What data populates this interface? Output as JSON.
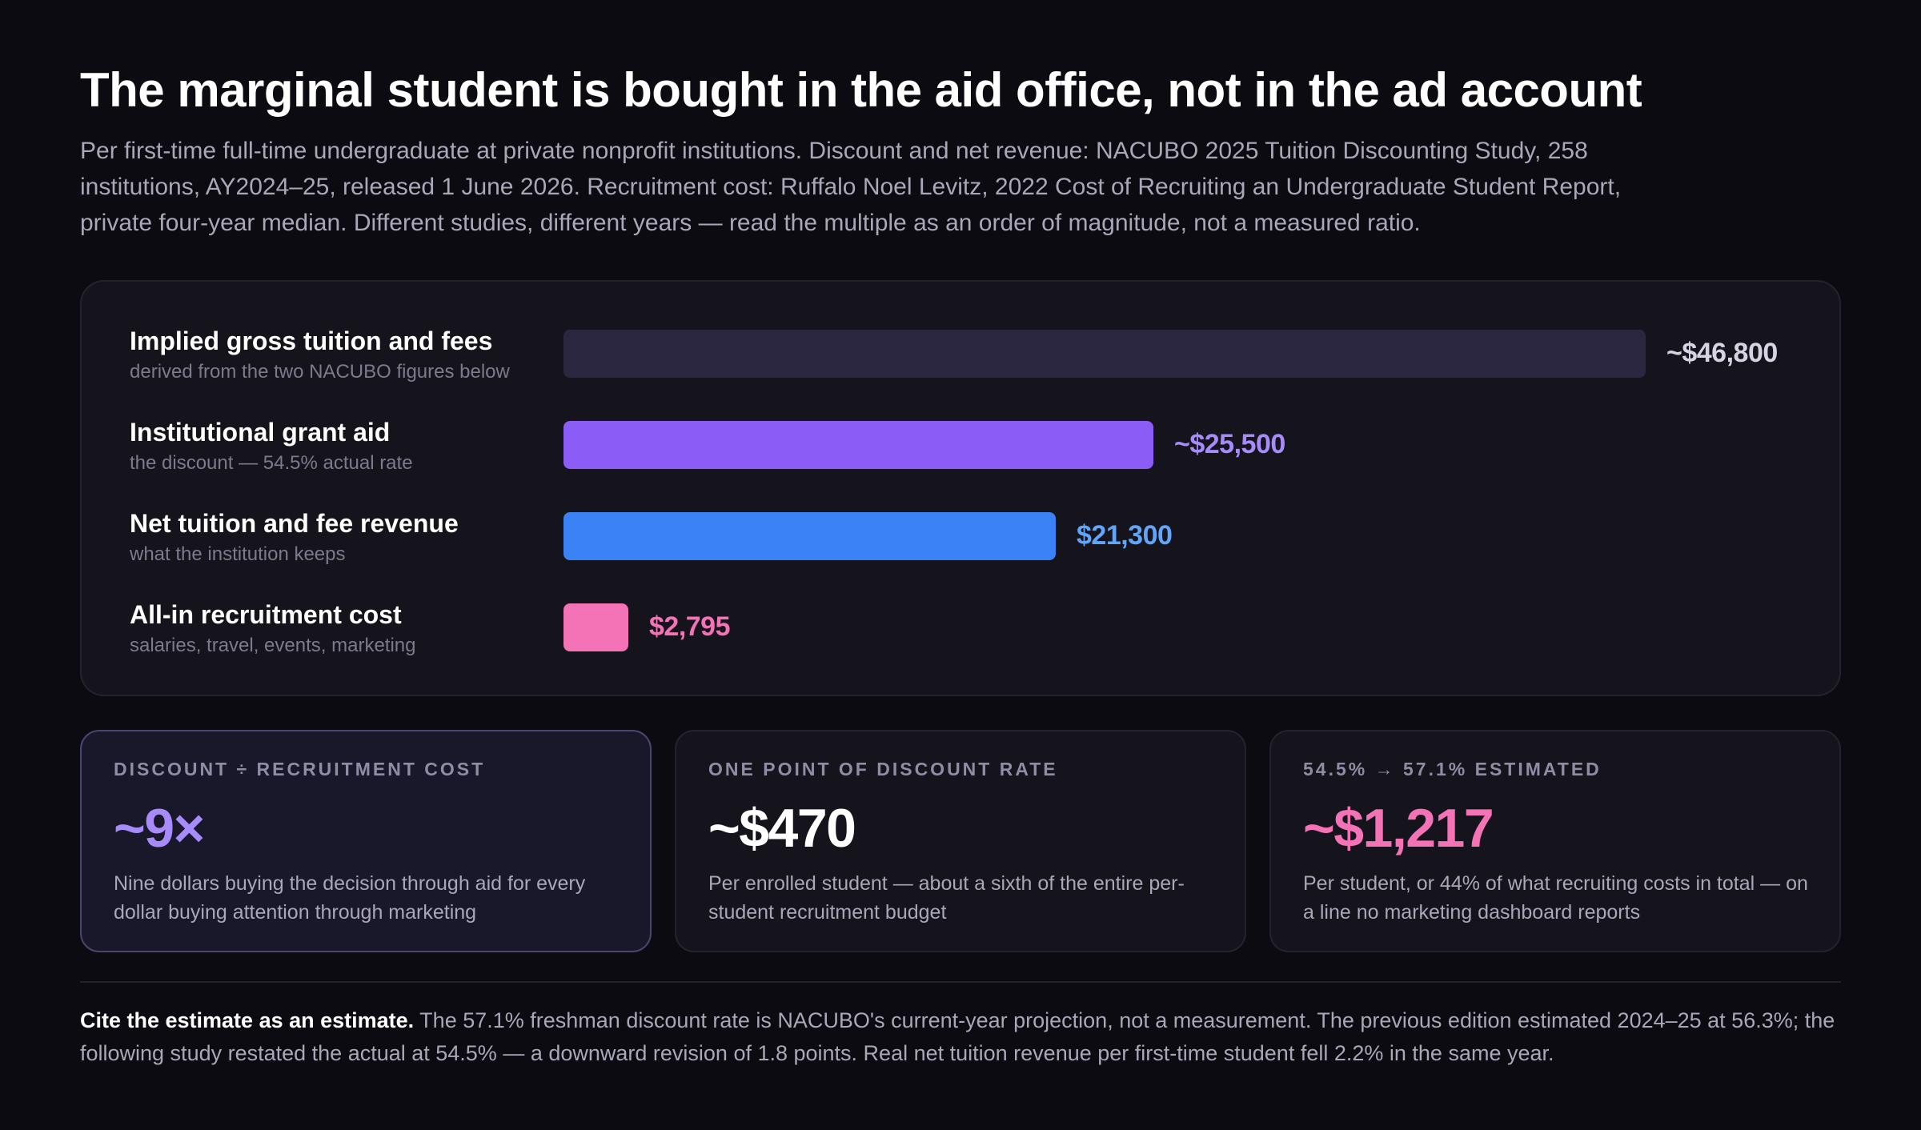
{
  "title": "The marginal student is bought in the aid office, not in the ad account",
  "subtitle": "Per first-time full-time undergraduate at private nonprofit institutions. Discount and net revenue: NACUBO 2025 Tuition Discounting Study, 258 institutions, AY2024–25, released 1 June 2026. Recruitment cost: Ruffalo Noel Levitz, 2022 Cost of Recruiting an Undergraduate Student Report, private four-year median. Different studies, different years — read the multiple as an order of magnitude, not a measured ratio.",
  "chart_data": {
    "type": "bar",
    "orientation": "horizontal",
    "categories": [
      "Implied gross tuition and fees",
      "Institutional grant aid",
      "Net tuition and fee revenue",
      "All-in recruitment cost"
    ],
    "sublabels": [
      "derived from the two NACUBO figures below",
      "the discount — 54.5% actual rate",
      "what the institution keeps",
      "salaries, travel, events, marketing"
    ],
    "values": [
      46800,
      25500,
      21300,
      2795
    ],
    "value_labels": [
      "~$46,800",
      "~$25,500",
      "$21,300",
      "$2,795"
    ],
    "colors": [
      "#2c2740",
      "#8b5cf6",
      "#3b82f6",
      "#f472b6"
    ],
    "label_colors": [
      "#d6d4e2",
      "#a78bfa",
      "#60a5fa",
      "#f472b6"
    ],
    "xlim": [
      0,
      46800
    ],
    "grid": false
  },
  "cards": [
    {
      "kicker": "DISCOUNT ÷ RECRUITMENT COST",
      "value": "~9×",
      "value_color": "#a78bfa",
      "desc": "Nine dollars buying the decision through aid for every dollar buying attention through marketing"
    },
    {
      "kicker": "ONE POINT OF DISCOUNT RATE",
      "value": "~$470",
      "value_color": "#ffffff",
      "desc": "Per enrolled student — about a sixth of the entire per-student recruitment budget"
    },
    {
      "kicker": "54.5% → 57.1% ESTIMATED",
      "value": "~$1,217",
      "value_color": "#f472b6",
      "desc": "Per student, or 44% of what recruiting costs in total — on a line no marketing dashboard reports"
    }
  ],
  "footnote": {
    "lead": "Cite the estimate as an estimate.",
    "text": " The 57.1% freshman discount rate is NACUBO's current-year projection, not a measurement. The previous edition estimated 2024–25 at 56.3%; the following study restated the actual at 54.5% — a downward revision of 1.8 points. Real net tuition revenue per first-time student fell 2.2% in the same year."
  }
}
